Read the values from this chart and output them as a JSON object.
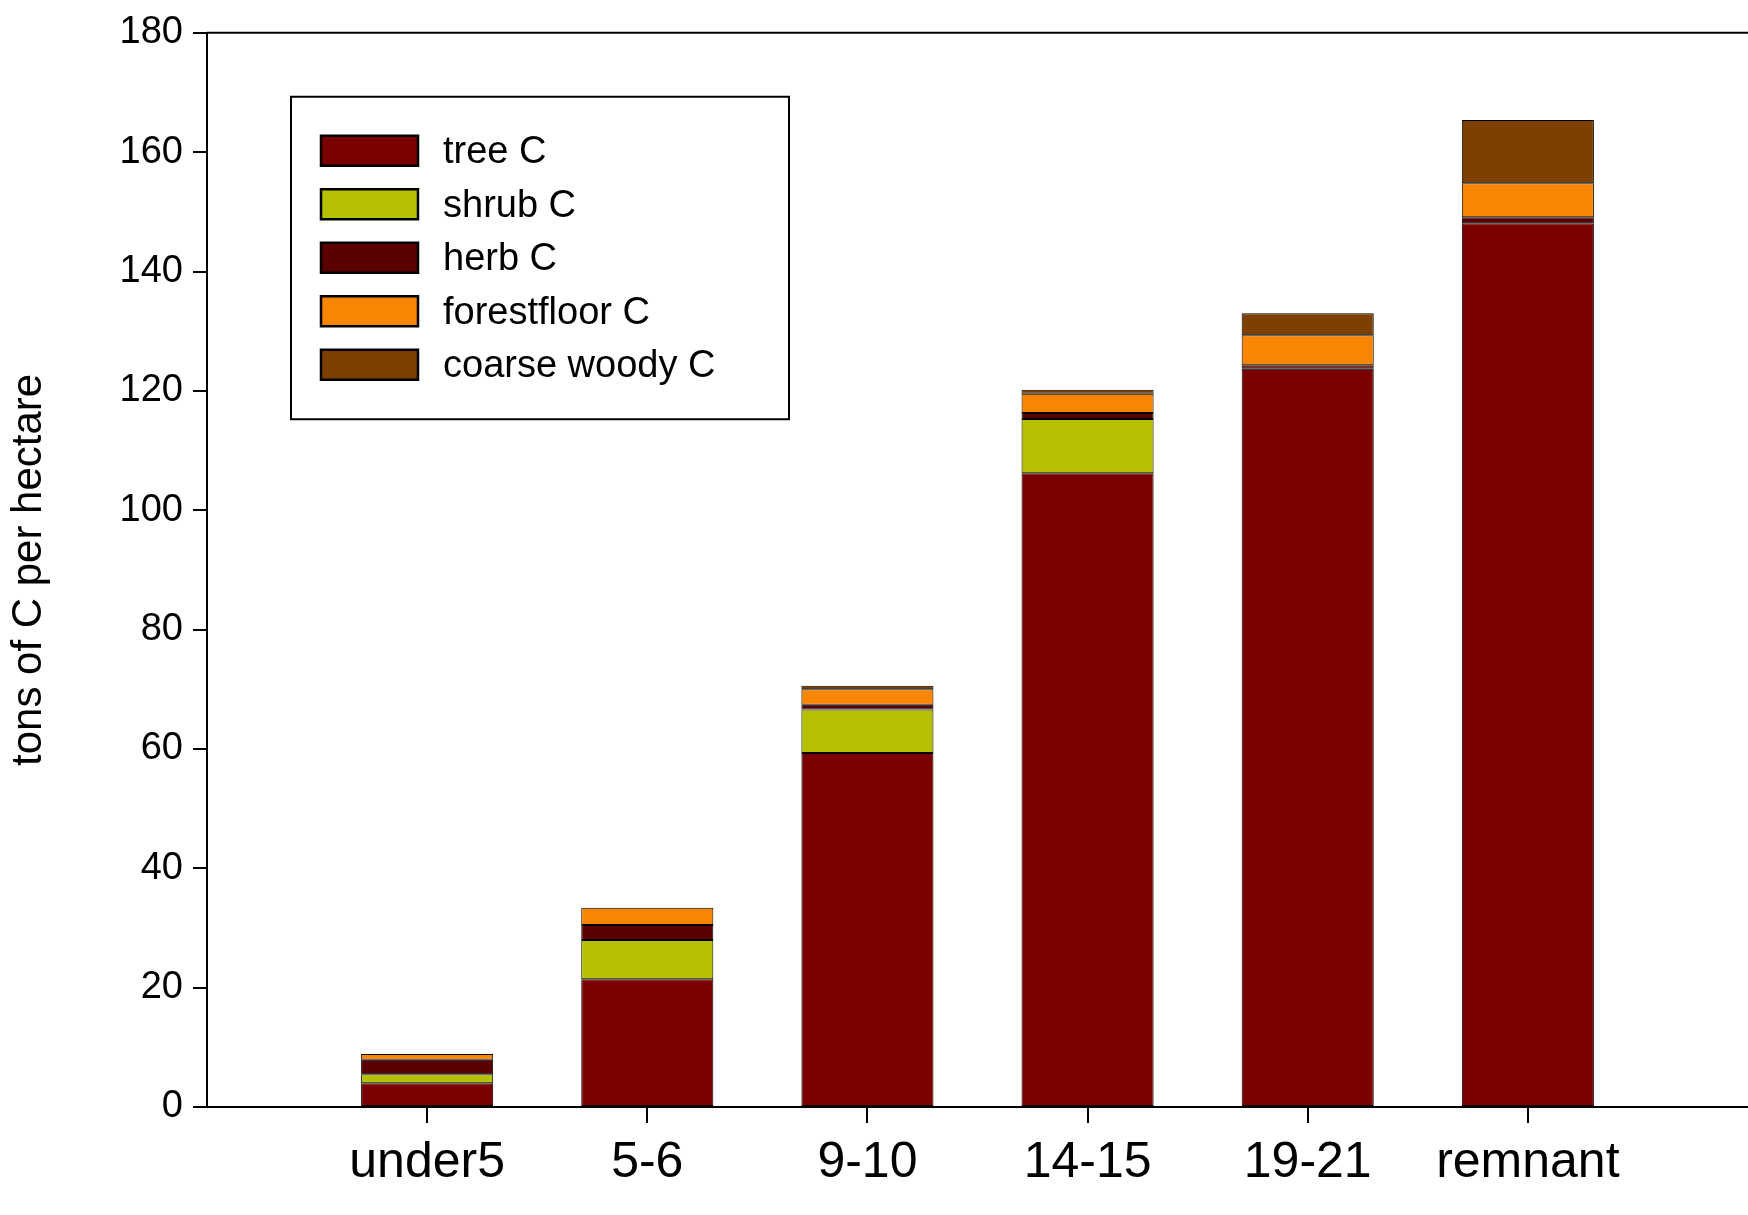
{
  "chart_data": {
    "type": "bar",
    "ylabel": "tons of C per hectare",
    "categories": [
      "under5",
      "5-6",
      "9-10",
      "14-15",
      "19-21",
      "remnant"
    ],
    "stacked": true,
    "ylim": [
      0,
      180
    ],
    "yticks": [
      0,
      20,
      40,
      60,
      80,
      100,
      120,
      140,
      160,
      180
    ],
    "legend": "top left",
    "series": [
      {
        "name": "tree C",
        "color": "#7b0000",
        "values": [
          4.0,
          21.4,
          59.3,
          106.2,
          123.7,
          148.1
        ]
      },
      {
        "name": "shrub C",
        "color": "#b5c000",
        "values": [
          1.5,
          6.6,
          7.3,
          9.1,
          0,
          0
        ]
      },
      {
        "name": "herb C",
        "color": "#5a0000",
        "values": [
          2.4,
          2.5,
          0.8,
          1.0,
          0.6,
          1.0
        ]
      },
      {
        "name": "forestfloor C",
        "color": "#fa8500",
        "values": [
          1.0,
          2.9,
          2.6,
          3.2,
          5.0,
          5.7
        ]
      },
      {
        "name": "coarse woody C",
        "color": "#7d4000",
        "values": [
          0,
          0,
          0.6,
          0.7,
          3.7,
          10.6
        ]
      }
    ]
  }
}
